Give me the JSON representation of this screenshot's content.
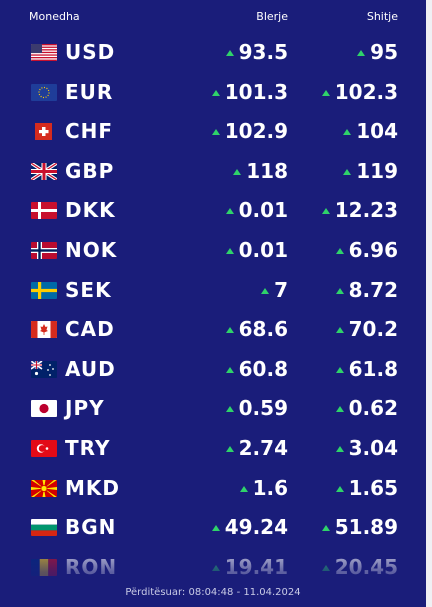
{
  "header": {
    "currency": "Monedha",
    "buy": "Blerje",
    "sell": "Shitje"
  },
  "rows": [
    {
      "code": "USD",
      "buy": "93.5",
      "sell": "95"
    },
    {
      "code": "EUR",
      "buy": "101.3",
      "sell": "102.3"
    },
    {
      "code": "CHF",
      "buy": "102.9",
      "sell": "104"
    },
    {
      "code": "GBP",
      "buy": "118",
      "sell": "119"
    },
    {
      "code": "DKK",
      "buy": "0.01",
      "sell": "12.23"
    },
    {
      "code": "NOK",
      "buy": "0.01",
      "sell": "6.96"
    },
    {
      "code": "SEK",
      "buy": "7",
      "sell": "8.72"
    },
    {
      "code": "CAD",
      "buy": "68.6",
      "sell": "70.2"
    },
    {
      "code": "AUD",
      "buy": "60.8",
      "sell": "61.8"
    },
    {
      "code": "JPY",
      "buy": "0.59",
      "sell": "0.62"
    },
    {
      "code": "TRY",
      "buy": "2.74",
      "sell": "3.04"
    },
    {
      "code": "MKD",
      "buy": "1.6",
      "sell": "1.65"
    },
    {
      "code": "BGN",
      "buy": "49.24",
      "sell": "51.89"
    },
    {
      "code": "RON",
      "buy": "19.41",
      "sell": "20.45"
    }
  ],
  "updated": "Përditësuar: 08:04:48 - 11.04.2024",
  "colors": {
    "background": "#1a1d7a",
    "up_arrow": "#2fd36a",
    "text": "#ffffff"
  }
}
